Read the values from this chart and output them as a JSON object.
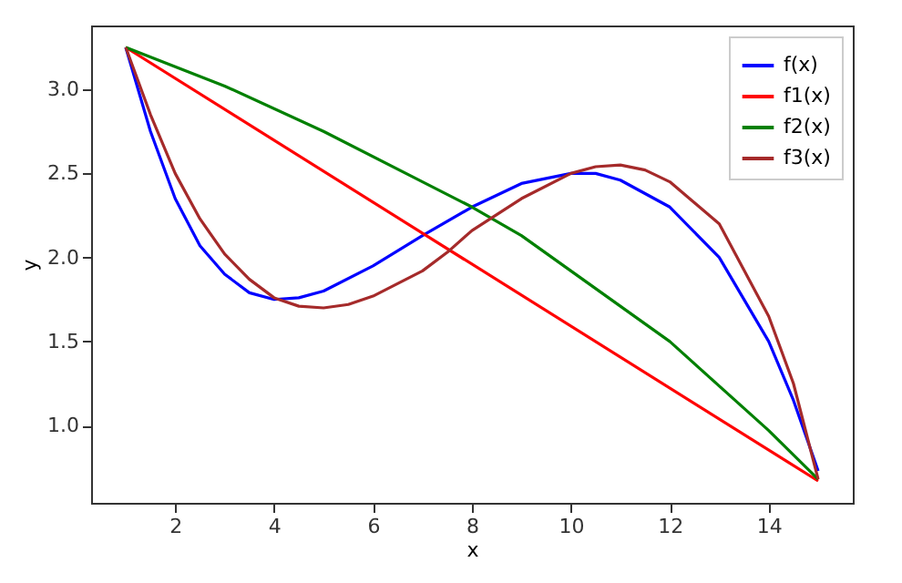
{
  "chart_data": {
    "type": "line",
    "xlabel": "x",
    "ylabel": "y",
    "xlim": [
      0.3,
      15.7
    ],
    "ylim": [
      0.54,
      3.38
    ],
    "xticks": [
      2,
      4,
      6,
      8,
      10,
      12,
      14
    ],
    "yticks": [
      {
        "value": 1,
        "label": "1.0"
      },
      1.5,
      {
        "value": 2,
        "label": "2.0"
      },
      2.5,
      {
        "value": 3,
        "label": "3.0"
      }
    ],
    "grid": false,
    "legend": "top right",
    "line_style": "solid",
    "marker": "none",
    "series": [
      {
        "name": "f(x)",
        "color": "#0000ff",
        "x": [
          1,
          1.5,
          2,
          2.5,
          3,
          3.5,
          4,
          4.5,
          5,
          6,
          7,
          8,
          9,
          10,
          10.5,
          11,
          12,
          13,
          14,
          14.5,
          15
        ],
        "values": [
          3.25,
          2.75,
          2.35,
          2.07,
          1.9,
          1.79,
          1.75,
          1.76,
          1.8,
          1.95,
          2.13,
          2.3,
          2.44,
          2.5,
          2.5,
          2.46,
          2.3,
          2.0,
          1.5,
          1.15,
          0.73
        ]
      },
      {
        "name": "f1(x)",
        "color": "#ff0000",
        "x": [
          1,
          15
        ],
        "values": [
          3.25,
          0.67
        ]
      },
      {
        "name": "f2(x)",
        "color": "#008000",
        "x": [
          1,
          3,
          5,
          7,
          8,
          9,
          10,
          12,
          14,
          15
        ],
        "values": [
          3.25,
          3.02,
          2.75,
          2.45,
          2.3,
          2.13,
          1.92,
          1.5,
          0.97,
          0.68
        ]
      },
      {
        "name": "f3(x)",
        "color": "#a52a2a",
        "x": [
          1,
          1.5,
          2,
          2.5,
          3,
          3.5,
          4,
          4.5,
          5,
          5.5,
          6,
          7,
          7.5,
          8,
          9,
          10,
          10.5,
          11,
          11.5,
          12,
          13,
          14,
          14.5,
          15
        ],
        "values": [
          3.25,
          2.85,
          2.5,
          2.23,
          2.02,
          1.87,
          1.76,
          1.71,
          1.7,
          1.72,
          1.77,
          1.92,
          2.03,
          2.16,
          2.35,
          2.5,
          2.54,
          2.55,
          2.52,
          2.45,
          2.2,
          1.65,
          1.25,
          0.68
        ]
      }
    ]
  }
}
